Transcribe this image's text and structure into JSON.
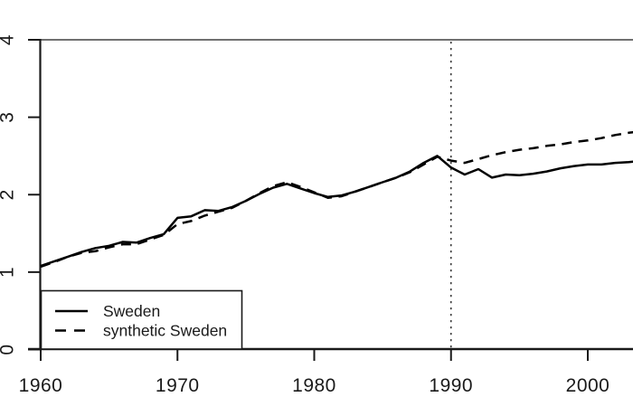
{
  "figure": {
    "background": "#ffffff",
    "axis_color": "#1a1a1a",
    "box_top_color": "#707070",
    "series_color": "#000000",
    "treatment_line_color": "#3c3c3c"
  },
  "legend": {
    "items": [
      {
        "label": "Sweden",
        "style": "solid"
      },
      {
        "label": "synthetic Sweden",
        "style": "dashed"
      }
    ]
  },
  "chart_data": {
    "type": "line",
    "title": "",
    "xlabel": "",
    "ylabel": "",
    "x": [
      1960,
      1961,
      1962,
      1963,
      1964,
      1965,
      1966,
      1967,
      1968,
      1969,
      1970,
      1971,
      1972,
      1973,
      1974,
      1975,
      1976,
      1977,
      1978,
      1979,
      1980,
      1981,
      1982,
      1983,
      1984,
      1985,
      1986,
      1987,
      1988,
      1989,
      1990,
      1991,
      1992,
      1993,
      1994,
      1995,
      1996,
      1997,
      1998,
      1999,
      2000,
      2001,
      2002,
      2003,
      2004
    ],
    "series": [
      {
        "name": "Sweden",
        "style": "solid",
        "values": [
          1.08,
          1.14,
          1.2,
          1.26,
          1.31,
          1.34,
          1.39,
          1.38,
          1.44,
          1.49,
          1.7,
          1.72,
          1.8,
          1.79,
          1.84,
          1.92,
          2.01,
          2.09,
          2.14,
          2.08,
          2.02,
          1.97,
          1.99,
          2.04,
          2.1,
          2.16,
          2.22,
          2.3,
          2.41,
          2.5,
          2.35,
          2.26,
          2.33,
          2.22,
          2.26,
          2.25,
          2.27,
          2.3,
          2.34,
          2.37,
          2.39,
          2.39,
          2.41,
          2.42,
          2.44
        ]
      },
      {
        "name": "synthetic Sweden",
        "style": "dashed",
        "values": [
          1.07,
          1.13,
          1.2,
          1.25,
          1.27,
          1.32,
          1.36,
          1.36,
          1.42,
          1.48,
          1.62,
          1.66,
          1.73,
          1.78,
          1.83,
          1.92,
          2.02,
          2.11,
          2.16,
          2.1,
          2.03,
          1.96,
          1.98,
          2.04,
          2.1,
          2.16,
          2.22,
          2.29,
          2.39,
          2.49,
          2.44,
          2.41,
          2.46,
          2.51,
          2.55,
          2.58,
          2.6,
          2.63,
          2.65,
          2.68,
          2.7,
          2.73,
          2.77,
          2.8,
          2.82
        ]
      }
    ],
    "x_ticks": [
      1960,
      1970,
      1980,
      1990,
      2000
    ],
    "x_tick_labels": [
      "1960",
      "1970",
      "1980",
      "1990",
      "2000"
    ],
    "y_ticks": [
      0,
      1,
      2,
      3,
      4
    ],
    "y_tick_labels": [
      "0",
      "1",
      "2",
      "3",
      "4"
    ],
    "xlim": [
      1960,
      2003.3
    ],
    "ylim": [
      0,
      4
    ],
    "treatment_year": 1990,
    "grid": false,
    "legend_position": "bottom-left"
  }
}
